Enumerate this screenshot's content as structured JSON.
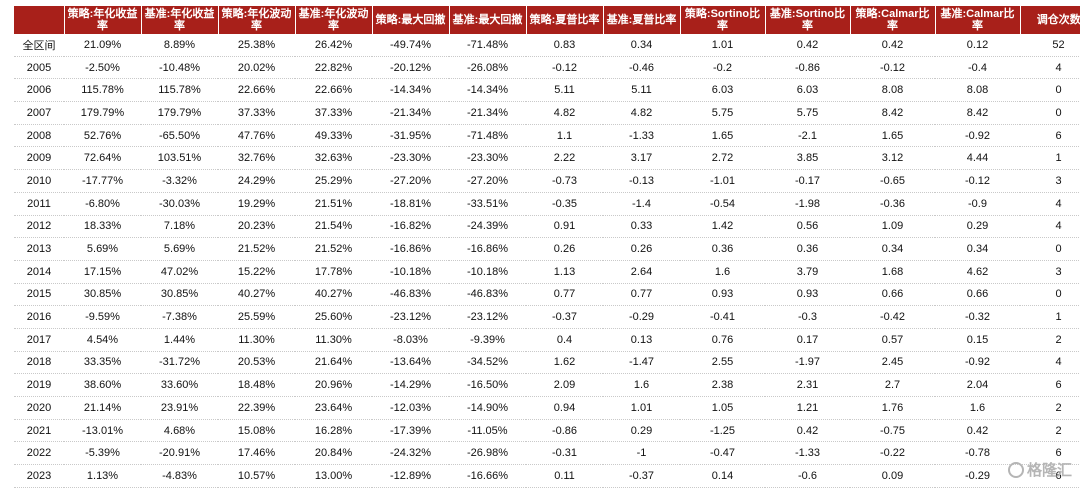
{
  "table": {
    "headers": [
      "",
      "策略:年化收益率",
      "基准:年化收益率",
      "策略:年化波动率",
      "基准:年化波动率",
      "策略:最大回撤",
      "基准:最大回撤",
      "策略:夏普比率",
      "基准:夏普比率",
      "策略:Sortino比率",
      "基准:Sortino比率",
      "策略:Calmar比率",
      "基准:Calmar比率",
      "调仓次数"
    ],
    "rows": [
      [
        "全区间",
        "21.09%",
        "8.89%",
        "25.38%",
        "26.42%",
        "-49.74%",
        "-71.48%",
        "0.83",
        "0.34",
        "1.01",
        "0.42",
        "0.42",
        "0.12",
        "52"
      ],
      [
        "2005",
        "-2.50%",
        "-10.48%",
        "20.02%",
        "22.82%",
        "-20.12%",
        "-26.08%",
        "-0.12",
        "-0.46",
        "-0.2",
        "-0.86",
        "-0.12",
        "-0.4",
        "4"
      ],
      [
        "2006",
        "115.78%",
        "115.78%",
        "22.66%",
        "22.66%",
        "-14.34%",
        "-14.34%",
        "5.11",
        "5.11",
        "6.03",
        "6.03",
        "8.08",
        "8.08",
        "0"
      ],
      [
        "2007",
        "179.79%",
        "179.79%",
        "37.33%",
        "37.33%",
        "-21.34%",
        "-21.34%",
        "4.82",
        "4.82",
        "5.75",
        "5.75",
        "8.42",
        "8.42",
        "0"
      ],
      [
        "2008",
        "52.76%",
        "-65.50%",
        "47.76%",
        "49.33%",
        "-31.95%",
        "-71.48%",
        "1.1",
        "-1.33",
        "1.65",
        "-2.1",
        "1.65",
        "-0.92",
        "6"
      ],
      [
        "2009",
        "72.64%",
        "103.51%",
        "32.76%",
        "32.63%",
        "-23.30%",
        "-23.30%",
        "2.22",
        "3.17",
        "2.72",
        "3.85",
        "3.12",
        "4.44",
        "1"
      ],
      [
        "2010",
        "-17.77%",
        "-3.32%",
        "24.29%",
        "25.29%",
        "-27.20%",
        "-27.20%",
        "-0.73",
        "-0.13",
        "-1.01",
        "-0.17",
        "-0.65",
        "-0.12",
        "3"
      ],
      [
        "2011",
        "-6.80%",
        "-30.03%",
        "19.29%",
        "21.51%",
        "-18.81%",
        "-33.51%",
        "-0.35",
        "-1.4",
        "-0.54",
        "-1.98",
        "-0.36",
        "-0.9",
        "4"
      ],
      [
        "2012",
        "18.33%",
        "7.18%",
        "20.23%",
        "21.54%",
        "-16.82%",
        "-24.39%",
        "0.91",
        "0.33",
        "1.42",
        "0.56",
        "1.09",
        "0.29",
        "4"
      ],
      [
        "2013",
        "5.69%",
        "5.69%",
        "21.52%",
        "21.52%",
        "-16.86%",
        "-16.86%",
        "0.26",
        "0.26",
        "0.36",
        "0.36",
        "0.34",
        "0.34",
        "0"
      ],
      [
        "2014",
        "17.15%",
        "47.02%",
        "15.22%",
        "17.78%",
        "-10.18%",
        "-10.18%",
        "1.13",
        "2.64",
        "1.6",
        "3.79",
        "1.68",
        "4.62",
        "3"
      ],
      [
        "2015",
        "30.85%",
        "30.85%",
        "40.27%",
        "40.27%",
        "-46.83%",
        "-46.83%",
        "0.77",
        "0.77",
        "0.93",
        "0.93",
        "0.66",
        "0.66",
        "0"
      ],
      [
        "2016",
        "-9.59%",
        "-7.38%",
        "25.59%",
        "25.60%",
        "-23.12%",
        "-23.12%",
        "-0.37",
        "-0.29",
        "-0.41",
        "-0.3",
        "-0.42",
        "-0.32",
        "1"
      ],
      [
        "2017",
        "4.54%",
        "1.44%",
        "11.30%",
        "11.30%",
        "-8.03%",
        "-9.39%",
        "0.4",
        "0.13",
        "0.76",
        "0.17",
        "0.57",
        "0.15",
        "2"
      ],
      [
        "2018",
        "33.35%",
        "-31.72%",
        "20.53%",
        "21.64%",
        "-13.64%",
        "-34.52%",
        "1.62",
        "-1.47",
        "2.55",
        "-1.97",
        "2.45",
        "-0.92",
        "4"
      ],
      [
        "2019",
        "38.60%",
        "33.60%",
        "18.48%",
        "20.96%",
        "-14.29%",
        "-16.50%",
        "2.09",
        "1.6",
        "2.38",
        "2.31",
        "2.7",
        "2.04",
        "6"
      ],
      [
        "2020",
        "21.14%",
        "23.91%",
        "22.39%",
        "23.64%",
        "-12.03%",
        "-14.90%",
        "0.94",
        "1.01",
        "1.05",
        "1.21",
        "1.76",
        "1.6",
        "2"
      ],
      [
        "2021",
        "-13.01%",
        "4.68%",
        "15.08%",
        "16.28%",
        "-17.39%",
        "-11.05%",
        "-0.86",
        "0.29",
        "-1.25",
        "0.42",
        "-0.75",
        "0.42",
        "2"
      ],
      [
        "2022",
        "-5.39%",
        "-20.91%",
        "17.46%",
        "20.84%",
        "-24.32%",
        "-26.98%",
        "-0.31",
        "-1",
        "-0.47",
        "-1.33",
        "-0.22",
        "-0.78",
        "6"
      ],
      [
        "2023",
        "1.13%",
        "-4.83%",
        "10.57%",
        "13.00%",
        "-12.89%",
        "-16.66%",
        "0.11",
        "-0.37",
        "0.14",
        "-0.6",
        "0.09",
        "-0.29",
        "6"
      ]
    ]
  },
  "watermark": {
    "text": "格隆汇",
    "icon": "gelonghui-logo-icon"
  },
  "colors": {
    "header_bg": "#a8201a",
    "header_text": "#ffffff",
    "watermark": "#b5b5b5"
  }
}
